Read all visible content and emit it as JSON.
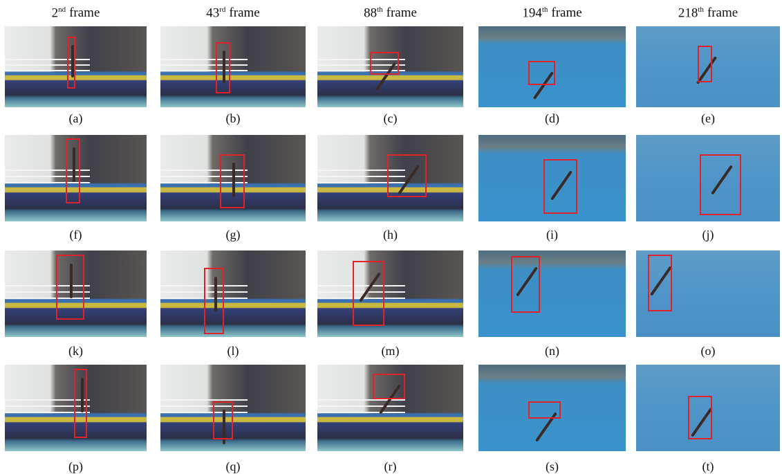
{
  "columns": [
    {
      "number": "2",
      "suffix": "nd",
      "text": "frame"
    },
    {
      "number": "43",
      "suffix": "rd",
      "text": "frame"
    },
    {
      "number": "88",
      "suffix": "th",
      "text": "frame"
    },
    {
      "number": "194",
      "suffix": "th",
      "text": "frame"
    },
    {
      "number": "218",
      "suffix": "th",
      "text": "frame"
    }
  ],
  "panels": [
    "(a)",
    "(b)",
    "(c)",
    "(d)",
    "(e)",
    "(f)",
    "(g)",
    "(h)",
    "(i)",
    "(j)",
    "(k)",
    "(l)",
    "(m)",
    "(n)",
    "(o)",
    "(p)",
    "(q)",
    "(r)",
    "(s)",
    "(t)"
  ]
}
